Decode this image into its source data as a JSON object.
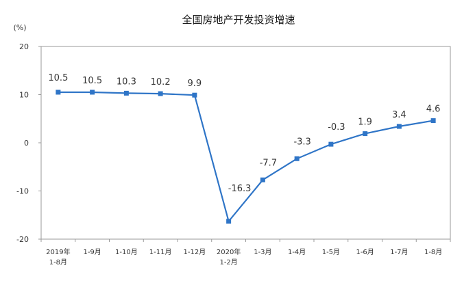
{
  "chart_data": {
    "type": "line",
    "title": "全国房地产开发投资增速",
    "unit_label": "(%)",
    "ylim": [
      -20,
      20
    ],
    "yticks": [
      20,
      10,
      0,
      -10,
      -20
    ],
    "grid": false,
    "categories": [
      [
        "2019年",
        "1-8月"
      ],
      [
        "1-9月"
      ],
      [
        "1-10月"
      ],
      [
        "1-11月"
      ],
      [
        "1-12月"
      ],
      [
        "2020年",
        "1-2月"
      ],
      [
        "1-3月"
      ],
      [
        "1-4月"
      ],
      [
        "1-5月"
      ],
      [
        "1-6月"
      ],
      [
        "1-7月"
      ],
      [
        "1-8月"
      ]
    ],
    "series": [
      {
        "values": [
          10.5,
          10.5,
          10.3,
          10.2,
          9.9,
          -16.3,
          -7.7,
          -3.3,
          -0.3,
          1.9,
          3.4,
          4.6
        ],
        "labels": [
          "10.5",
          "10.5",
          "10.3",
          "10.2",
          "9.9",
          "-16.3",
          "-7.7",
          "-3.3",
          "-0.3",
          "1.9",
          "3.4",
          "4.6"
        ]
      }
    ],
    "colors": {
      "line": "#2f75c7",
      "marker": "#2f75c7",
      "axis": "#999999"
    }
  }
}
